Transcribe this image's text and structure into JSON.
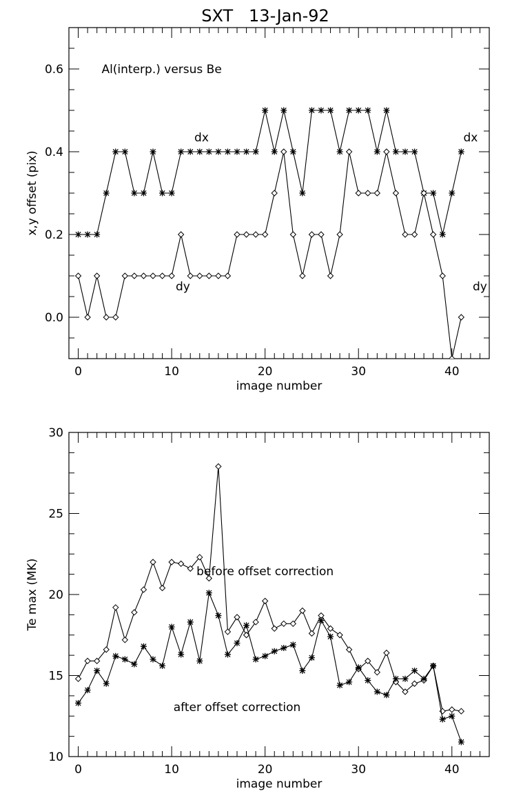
{
  "figure_title": "SXT   13-Jan-92",
  "chart_data": [
    {
      "type": "line",
      "title": "SXT   13-Jan-92",
      "xlabel": "image number",
      "ylabel": "x,y offset (pix)",
      "xlim": [
        -1,
        44
      ],
      "ylim": [
        -0.1,
        0.7
      ],
      "x_ticks": [
        0,
        10,
        20,
        30,
        40
      ],
      "y_ticks": [
        0.0,
        0.2,
        0.4,
        0.6
      ],
      "y_tick_labels": [
        "0.0",
        "0.2",
        "0.4",
        "0.6"
      ],
      "annotation": "Al(interp.) versus Be",
      "x": [
        0,
        1,
        2,
        3,
        4,
        5,
        6,
        7,
        8,
        9,
        10,
        11,
        12,
        13,
        14,
        15,
        16,
        17,
        18,
        19,
        20,
        21,
        22,
        23,
        24,
        25,
        26,
        27,
        28,
        29,
        30,
        31,
        32,
        33,
        34,
        35,
        36,
        37,
        38,
        39,
        40,
        41
      ],
      "series": [
        {
          "name": "dx",
          "marker": "asterisk",
          "values": [
            0.2,
            0.2,
            0.2,
            0.3,
            0.4,
            0.4,
            0.3,
            0.3,
            0.4,
            0.3,
            0.3,
            0.4,
            0.4,
            0.4,
            0.4,
            0.4,
            0.4,
            0.4,
            0.4,
            0.4,
            0.5,
            0.4,
            0.5,
            0.4,
            0.3,
            0.5,
            0.5,
            0.5,
            0.4,
            0.5,
            0.5,
            0.5,
            0.4,
            0.5,
            0.4,
            0.4,
            0.4,
            0.3,
            0.3,
            0.2,
            0.3,
            0.4
          ]
        },
        {
          "name": "dy",
          "marker": "diamond",
          "values": [
            0.1,
            0.0,
            0.1,
            0.0,
            0.0,
            0.1,
            0.1,
            0.1,
            0.1,
            0.1,
            0.1,
            0.2,
            0.1,
            0.1,
            0.1,
            0.1,
            0.1,
            0.2,
            0.2,
            0.2,
            0.2,
            0.3,
            0.4,
            0.2,
            0.1,
            0.2,
            0.2,
            0.1,
            0.2,
            0.4,
            0.3,
            0.3,
            0.3,
            0.4,
            0.3,
            0.2,
            0.2,
            0.3,
            0.2,
            0.1,
            -0.1,
            0.0
          ]
        }
      ],
      "labels": [
        {
          "text": "dx",
          "x": 13.2,
          "y": 0.425
        },
        {
          "text": "dx",
          "x": 42.0,
          "y": 0.425
        },
        {
          "text": "dy",
          "x": 11.2,
          "y": 0.065
        },
        {
          "text": "dy",
          "x": 43.0,
          "y": 0.065
        }
      ]
    },
    {
      "type": "line",
      "xlabel": "image number",
      "ylabel": "Te max (MK)",
      "xlim": [
        -1,
        44
      ],
      "ylim": [
        10,
        30
      ],
      "x_ticks": [
        0,
        10,
        20,
        30,
        40
      ],
      "y_ticks": [
        10,
        15,
        20,
        25,
        30
      ],
      "y_tick_labels": [
        "10",
        "15",
        "20",
        "25",
        "30"
      ],
      "x": [
        0,
        1,
        2,
        3,
        4,
        5,
        6,
        7,
        8,
        9,
        10,
        11,
        12,
        13,
        14,
        15,
        16,
        17,
        18,
        19,
        20,
        21,
        22,
        23,
        24,
        25,
        26,
        27,
        28,
        29,
        30,
        31,
        32,
        33,
        34,
        35,
        36,
        37,
        38,
        39,
        40,
        41
      ],
      "series": [
        {
          "name": "before offset correction",
          "marker": "diamond",
          "values": [
            14.8,
            15.9,
            15.9,
            16.6,
            19.2,
            17.2,
            18.9,
            20.3,
            22.0,
            20.4,
            22.0,
            21.9,
            21.6,
            22.3,
            21.0,
            27.9,
            17.7,
            18.6,
            17.5,
            18.3,
            19.6,
            17.9,
            18.2,
            18.2,
            19.0,
            17.6,
            18.7,
            17.9,
            17.5,
            16.6,
            15.4,
            15.9,
            15.2,
            16.4,
            14.6,
            14.0,
            14.5,
            14.7,
            15.6,
            12.8,
            12.9,
            12.8
          ]
        },
        {
          "name": "after offset correction",
          "marker": "asterisk",
          "values": [
            13.3,
            14.1,
            15.3,
            14.5,
            16.2,
            16.0,
            15.7,
            16.8,
            16.0,
            15.6,
            18.0,
            16.3,
            18.3,
            15.9,
            20.1,
            18.7,
            16.3,
            17.0,
            18.1,
            16.0,
            16.2,
            16.5,
            16.7,
            16.9,
            15.3,
            16.1,
            18.4,
            17.4,
            14.4,
            14.6,
            15.5,
            14.7,
            14.0,
            13.8,
            14.8,
            14.8,
            15.3,
            14.8,
            15.6,
            12.3,
            12.5,
            10.9
          ]
        }
      ],
      "labels": [
        {
          "text": "before offset correction",
          "x": 20.0,
          "y": 21.2
        },
        {
          "text": "after offset correction",
          "x": 17.0,
          "y": 12.8
        }
      ]
    }
  ]
}
